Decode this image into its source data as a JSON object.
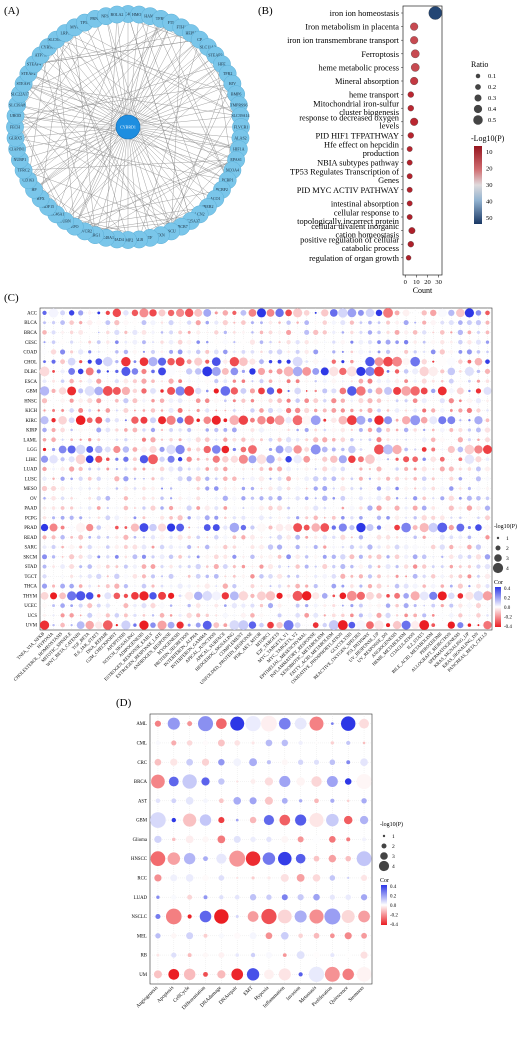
{
  "panels": {
    "a": "(A)",
    "b": "(B)",
    "c": "(C)",
    "d": "(D)"
  },
  "network": {
    "hub": "CYBRD1",
    "genes": [
      "CYBRD1",
      "SLC40A1",
      "HMOX1",
      "HAMP",
      "TFRC",
      "FTL",
      "FTH1",
      "HEPH",
      "CP",
      "SLC11A2",
      "STEAP3",
      "HFE",
      "TFR2",
      "HJV",
      "BMP6",
      "TMPRSS6",
      "SLC39A14",
      "FLVCR1",
      "ALAS2",
      "HIF1A",
      "EPAS1",
      "NCOA4",
      "PCBP1",
      "PCBP2",
      "ACO1",
      "IREB2",
      "LCN2",
      "SLC25A37",
      "ABCB7",
      "ISCU",
      "FXN",
      "TF",
      "ALB",
      "BMP2",
      "SMAD4",
      "SLC48A1",
      "HRG1",
      "FLVCR2",
      "EPO",
      "CUBN",
      "SLC46A1",
      "GDF15",
      "HPX",
      "HP",
      "CD163",
      "TFRC2",
      "NUBP1",
      "CIAPIN1",
      "GLRX5",
      "FECH",
      "UROD",
      "SLC39A8",
      "SLC22A17",
      "STEAP1",
      "STEAP2",
      "STEAP4",
      "ATP7A",
      "CYB561",
      "SLC39A4",
      "LRP1",
      "MYC",
      "TP53",
      "PRNP",
      "NFS1",
      "BOLA2"
    ]
  },
  "enrichment": {
    "xlabel": "Count",
    "xticks": [
      0,
      10,
      20,
      30
    ],
    "terms": [
      {
        "label": "iron ion homeostasis",
        "count": 27,
        "ratio": 0.55,
        "logp": 48
      },
      {
        "label": "Iron metabolism in placenta",
        "count": 8,
        "ratio": 0.25,
        "logp": 12
      },
      {
        "label": "iron ion transmembrane transport",
        "count": 8,
        "ratio": 0.25,
        "logp": 12
      },
      {
        "label": "Ferroptosis",
        "count": 9,
        "ratio": 0.28,
        "logp": 12
      },
      {
        "label": "heme metabolic process",
        "count": 9,
        "ratio": 0.28,
        "logp": 12
      },
      {
        "label": "Mineral absorption",
        "count": 8,
        "ratio": 0.25,
        "logp": 11
      },
      {
        "label": "heme transport",
        "count": 5,
        "ratio": 0.15,
        "logp": 9
      },
      {
        "label": "Mitochondrial iron-sulfur cluster biogenesis",
        "count": 5,
        "ratio": 0.15,
        "logp": 9
      },
      {
        "label": "response to decreased oxygen levels",
        "count": 8,
        "ratio": 0.25,
        "logp": 9
      },
      {
        "label": "PID HIF1 TFPATHWAY",
        "count": 5,
        "ratio": 0.15,
        "logp": 8
      },
      {
        "label": "Hfe effect on hepcidin production",
        "count": 4,
        "ratio": 0.12,
        "logp": 8
      },
      {
        "label": "NBIA subtypes pathway",
        "count": 4,
        "ratio": 0.12,
        "logp": 7
      },
      {
        "label": "TP53 Regulates Transcription of Genes",
        "count": 4,
        "ratio": 0.12,
        "logp": 7
      },
      {
        "label": "PID MYC ACTIV PATHWAY",
        "count": 4,
        "ratio": 0.12,
        "logp": 7
      },
      {
        "label": "intestinal absorption",
        "count": 4,
        "ratio": 0.12,
        "logp": 7
      },
      {
        "label": "cellular response to topologically incorrect protein",
        "count": 4,
        "ratio": 0.12,
        "logp": 6
      },
      {
        "label": "cellular divalent inorganic cation homeostasis",
        "count": 6,
        "ratio": 0.18,
        "logp": 6
      },
      {
        "label": "positive regulation of cellular catabolic process",
        "count": 5,
        "ratio": 0.15,
        "logp": 6
      },
      {
        "label": "regulation of organ growth",
        "count": 3,
        "ratio": 0.1,
        "logp": 6
      }
    ],
    "ratio_legend": {
      "title": "Ratio",
      "values": [
        "0.1",
        "0.2",
        "0.3",
        "0.4",
        "0.5"
      ]
    },
    "color_legend": {
      "title": "-Log10(P)",
      "values": [
        "10",
        "20",
        "30",
        "40",
        "50"
      ]
    }
  },
  "cancer_dotplot": {
    "rows": [
      "ACC",
      "BLCA",
      "BRCA",
      "CESC",
      "COAD",
      "CHOL",
      "DLBC",
      "ESCA",
      "GBM",
      "HNSC",
      "KICH",
      "KIRC",
      "KIRP",
      "LAML",
      "LGG",
      "LIHC",
      "LUAD",
      "LUSC",
      "MESO",
      "OV",
      "PAAD",
      "PCPG",
      "PRAD",
      "READ",
      "SARC",
      "SKCM",
      "STAD",
      "TGCT",
      "THCA",
      "THYM",
      "UCEC",
      "UCS",
      "UVM"
    ],
    "columns": [
      "TNFA_VIA_NFKB",
      "HYPOXIA",
      "CHOLESTEROL_HOMEOSTASIS",
      "MITOTIC_SPINDLE",
      "WNT_BETA_CATENIN",
      "TGF_BETA",
      "IL6_JAK_STAT3",
      "DNA_REPAIR",
      "G2M_CHECKPOINT",
      "APOPTOSIS",
      "NOTCH_SIGNALING",
      "ADIPOGENESIS",
      "ESTROGEN_RESPONSE_EARLY",
      "ESTROGEN_RESPONSE_LATE",
      "ANDROGEN_RESPONSE",
      "MYOGENESIS",
      "PROTEIN_SECRETION",
      "INTERFERON_ALPHA",
      "INTERFERON_GAMMA",
      "APICAL_JUNCTION",
      "APICAL_SURFACE",
      "HEDGEHOG_SIGNALING",
      "COMPLEMENT",
      "UNFOLDED_PROTEIN_RESPONSE",
      "PI3K_AKT_MTOR",
      "MTORC1",
      "E2F_TARGETS",
      "MYC_TARGETS_V1",
      "MYC_TARGETS_V2",
      "EPITHELIAL_MESENCHYMAL",
      "INFLAMMATORY_RESPONSE",
      "XENOBIOTIC_METABOLISM",
      "FATTY_ACID_METABOLISM",
      "OXIDATIVE_PHOSPHORYLATION",
      "GLYCOLYSIS",
      "REACTIVE_OXYGEN_SPECIES",
      "P53_PATHWAY",
      "UV_RESPONSE_UP",
      "UV_RESPONSE_DN",
      "ANGIOGENESIS",
      "HEME_METABOLISM",
      "COAGULATION",
      "IL2_STAT5",
      "BILE_ACID_METABOLISM",
      "PEROXISOME",
      "ALLOGRAFT_REJECTION",
      "SPERMATOGENESIS",
      "KRAS_SIGNALING_UP",
      "KRAS_SIGNALING_DN",
      "PANCREAS_BETA_CELLS"
    ],
    "size_legend": {
      "title": "-log10(P)",
      "values": [
        "1",
        "2",
        "3",
        "4"
      ]
    },
    "color_legend": {
      "title": "Cor",
      "values": [
        "0.4",
        "0.2",
        "0.0",
        "-0.2",
        "-0.4"
      ]
    }
  },
  "state_dotplot": {
    "rows": [
      "AML",
      "CML",
      "CRC",
      "BRCA",
      "AST",
      "GBM",
      "Glioma",
      "HNSCC",
      "RCC",
      "LUAD",
      "NSCLC",
      "MEL",
      "RB",
      "UM"
    ],
    "columns": [
      "Angiogenesis",
      "Apoptosis",
      "CellCycle",
      "Differentiation",
      "DNAdamage",
      "DNArepair",
      "EMT",
      "Hypoxia",
      "Inflammation",
      "Invasion",
      "Metastasis",
      "Proliferation",
      "Quiescence",
      "Stemness"
    ],
    "size_legend": {
      "title": "-log10(P)",
      "values": [
        "1",
        "2",
        "3",
        "4"
      ]
    },
    "color_legend": {
      "title": "Cor",
      "values": [
        "0.4",
        "0.2",
        "0.0",
        "-0.2",
        "-0.4"
      ]
    }
  },
  "colors": {
    "node": "#7ac6ea",
    "hub": "#1e8ee0",
    "red": "#d7191c",
    "blue": "#2b3cd6",
    "navy": "#1f3f6a"
  }
}
